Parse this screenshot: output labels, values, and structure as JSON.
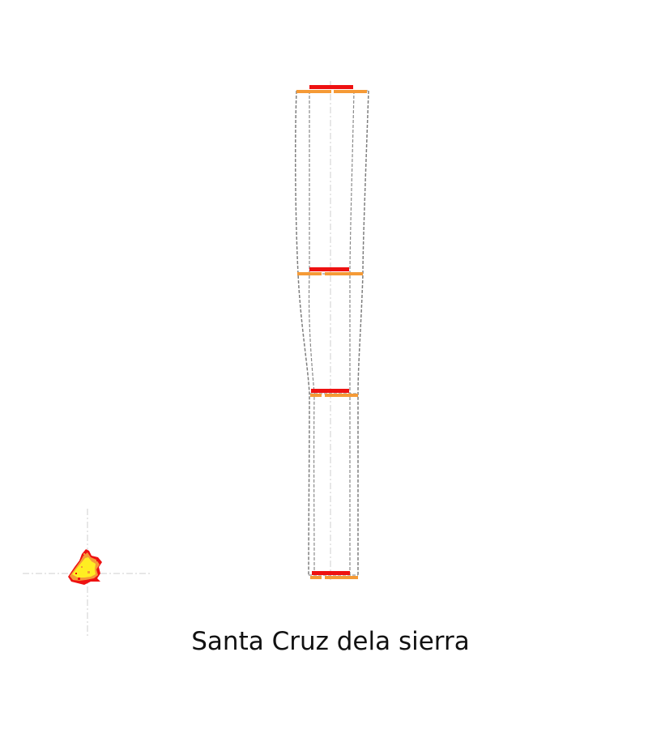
{
  "caption": "Santa Cruz dela sierra",
  "colors": {
    "red_bar": "#ee1111",
    "orange_bar": "#f59a36",
    "outline": "#7f7f7f",
    "inner_outline": "#8a8a8a",
    "centerline": "#cfcfcf",
    "crosshair": "#cfcfcf",
    "marker_outer": "#ee1111",
    "marker_mid": "#f59a36",
    "marker_inner": "#ffee22"
  },
  "diagram": {
    "type": "tapered-column-profile",
    "levels": 4,
    "marker": "point-cloud-with-crosshair"
  }
}
